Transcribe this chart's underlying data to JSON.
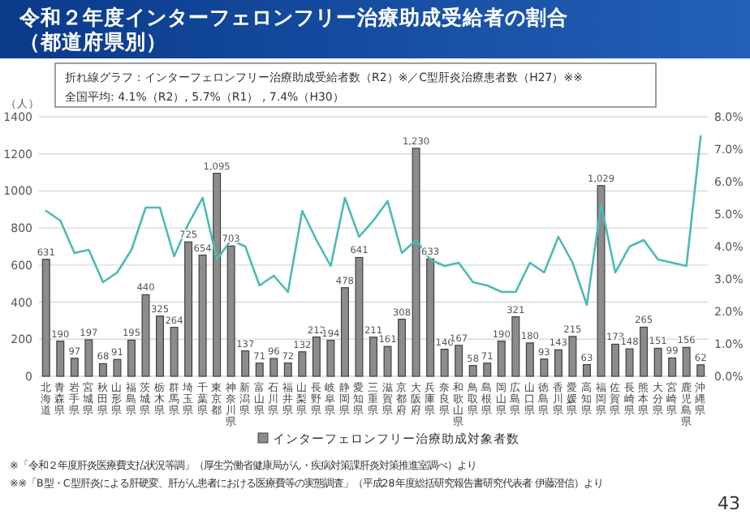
{
  "chart_data": {
    "type": "bar",
    "title": "令和２年度インターフェロンフリー治療助成受給者の割合",
    "subtitle": "（都道府県別）",
    "ylabel": "（人）",
    "annotations": [
      "折れ線グラフ：インターフェロンフリー治療助成受給者数（R2）※／C型肝炎治療患者数（H27）※※",
      "全国平均: 4.1%（R2）, 5.7%（R1） , 7.4%（H30）",
      "※「令和２年度肝炎医療費支払状況等調」（厚生労働省健康局がん・疾病対策課肝炎対策推進室調べ）より",
      "※※「B型・C型肝炎による肝硬変、肝がん患者における医療費等の実態調査」（平成28年度総括研究報告書研究代表者 伊藤澄信）より",
      "43"
    ],
    "categories": [
      "北海道",
      "青森県",
      "岩手県",
      "宮城県",
      "秋田県",
      "山形県",
      "福島県",
      "茨城県",
      "栃木県",
      "群馬県",
      "埼玉県",
      "千葉県",
      "東京都",
      "神奈川県",
      "新潟県",
      "富山県",
      "石川県",
      "福井県",
      "山梨県",
      "長野県",
      "岐阜県",
      "静岡県",
      "愛知県",
      "三重県",
      "滋賀県",
      "京都府",
      "大阪府",
      "兵庫県",
      "奈良県",
      "和歌山県",
      "鳥取県",
      "島根県",
      "岡山県",
      "広島県",
      "山口県",
      "徳島県",
      "香川県",
      "愛媛県",
      "高知県",
      "福岡県",
      "佐賀県",
      "長崎県",
      "熊本県",
      "大分県",
      "宮崎県",
      "鹿児島県",
      "沖縄県"
    ],
    "series": [
      {
        "name": "インターフェロンフリー治療助成対象者数",
        "color": "#8c8c8c",
        "values": [
          631,
          190,
          97,
          197,
          68,
          91,
          195,
          440,
          325,
          264,
          725,
          654,
          1095,
          703,
          137,
          71,
          96,
          72,
          132,
          212,
          194,
          478,
          641,
          211,
          161,
          308,
          1230,
          633,
          146,
          167,
          58,
          71,
          190,
          321,
          180,
          93,
          143,
          215,
          63,
          1029,
          173,
          148,
          265,
          151,
          99,
          156,
          62
        ],
        "value_labels": [
          "631",
          "190",
          "97",
          "197",
          "68",
          "91",
          "195",
          "440",
          "325",
          "264",
          "725",
          "654",
          "1,095",
          "703",
          "137",
          "71",
          "96",
          "72",
          "132",
          "212",
          "194",
          "478",
          "641",
          "211",
          "161",
          "308",
          "1,230",
          "633",
          "146",
          "167",
          "58",
          "71",
          "190",
          "321",
          "180",
          "93",
          "143",
          "215",
          "63",
          "1,029",
          "173",
          "148",
          "265",
          "151",
          "99",
          "156",
          "62"
        ]
      },
      {
        "type": "line",
        "axis": "y2",
        "color": "#4dbab4",
        "values": [
          5.1,
          4.8,
          3.8,
          3.9,
          2.9,
          3.2,
          3.9,
          5.2,
          5.2,
          3.7,
          4.7,
          5.5,
          3.6,
          4.2,
          4.0,
          2.8,
          3.1,
          2.6,
          5.1,
          4.2,
          3.4,
          5.5,
          4.3,
          4.8,
          5.4,
          3.8,
          4.2,
          3.6,
          3.4,
          3.5,
          2.9,
          2.8,
          2.6,
          2.6,
          3.5,
          3.2,
          4.3,
          3.5,
          2.2,
          5.3,
          3.2,
          4.0,
          4.2,
          3.6,
          3.5,
          3.4,
          7.4
        ]
      }
    ],
    "ylim": [
      0,
      1400
    ],
    "yticks": [
      0,
      200,
      400,
      600,
      800,
      1000,
      1200,
      1400
    ],
    "y2lim": [
      0,
      8
    ],
    "y2ticks": [
      {
        "value": 0,
        "label": "0.0%"
      },
      {
        "value": 1,
        "label": "1.0%"
      },
      {
        "value": 2,
        "label": "2.0%"
      },
      {
        "value": 3,
        "label": "3.0%"
      },
      {
        "value": 4,
        "label": "4.0%"
      },
      {
        "value": 5,
        "label": "5.0%"
      },
      {
        "value": 6,
        "label": "6.0%"
      },
      {
        "value": 7,
        "label": "7.0%"
      },
      {
        "value": 8,
        "label": "8.0%"
      }
    ],
    "grid": "y",
    "legend": "bottom"
  }
}
